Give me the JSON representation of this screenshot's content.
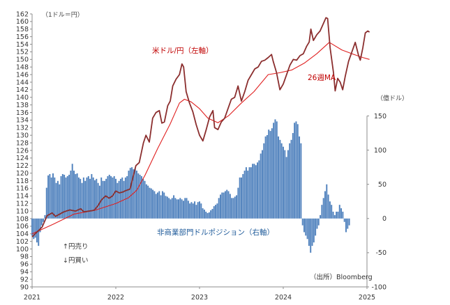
{
  "chart_data": {
    "type": "bar+line",
    "title": "",
    "units": {
      "left": "（1ドル＝円）",
      "right": "（億ドル）"
    },
    "x_axis": {
      "ticks": [
        "2021",
        "2022",
        "2023",
        "2024",
        "2025"
      ],
      "range": [
        "2021-01",
        "2025-01"
      ]
    },
    "y_left": {
      "ylim": [
        90,
        162
      ],
      "ticks": [
        90,
        92,
        94,
        96,
        98,
        100,
        102,
        104,
        106,
        108,
        110,
        112,
        114,
        116,
        118,
        120,
        122,
        124,
        126,
        128,
        130,
        132,
        134,
        136,
        138,
        140,
        142,
        144,
        146,
        148,
        150,
        152,
        154,
        156,
        158,
        160,
        162
      ]
    },
    "y_right": {
      "ylim": [
        -100,
        150
      ],
      "ticks": [
        -100,
        -50,
        0,
        50,
        100,
        150
      ]
    },
    "annotations": {
      "usdjpy": "米ドル/円（左軸）",
      "ma26": "26週MA",
      "position": "非商業部門ドルポジション（右軸）",
      "yen_strong": "↑円売り",
      "yen_weak": "↓円買い",
      "source": "（出所）Bloomberg"
    },
    "colors": {
      "usdjpy": "#8b2e2e",
      "ma26": "#e02020",
      "position": "#4f81bd",
      "usdjpy_label": "#c00000",
      "position_label": "#1f5b9a"
    },
    "series": [
      {
        "key": "usdjpy",
        "axis": "left",
        "kind": "line",
        "points": [
          [
            2021.0,
            103.2
          ],
          [
            2021.06,
            104.5
          ],
          [
            2021.12,
            105.8
          ],
          [
            2021.18,
            108.8
          ],
          [
            2021.24,
            109.5
          ],
          [
            2021.28,
            108.6
          ],
          [
            2021.33,
            109.2
          ],
          [
            2021.38,
            109.8
          ],
          [
            2021.45,
            110.3
          ],
          [
            2021.52,
            110.0
          ],
          [
            2021.58,
            110.6
          ],
          [
            2021.62,
            109.8
          ],
          [
            2021.68,
            110.0
          ],
          [
            2021.74,
            110.2
          ],
          [
            2021.79,
            111.5
          ],
          [
            2021.83,
            113.0
          ],
          [
            2021.88,
            114.0
          ],
          [
            2021.92,
            113.4
          ],
          [
            2021.96,
            114.0
          ],
          [
            2022.0,
            115.3
          ],
          [
            2022.04,
            114.8
          ],
          [
            2022.08,
            115.0
          ],
          [
            2022.12,
            115.4
          ],
          [
            2022.17,
            115.8
          ],
          [
            2022.2,
            118.5
          ],
          [
            2022.24,
            122.0
          ],
          [
            2022.28,
            122.8
          ],
          [
            2022.33,
            128.0
          ],
          [
            2022.36,
            130.0
          ],
          [
            2022.4,
            128.2
          ],
          [
            2022.44,
            134.5
          ],
          [
            2022.48,
            136.0
          ],
          [
            2022.52,
            136.5
          ],
          [
            2022.55,
            133.2
          ],
          [
            2022.58,
            133.5
          ],
          [
            2022.62,
            137.8
          ],
          [
            2022.65,
            139.0
          ],
          [
            2022.68,
            143.0
          ],
          [
            2022.72,
            144.8
          ],
          [
            2022.76,
            146.0
          ],
          [
            2022.79,
            148.8
          ],
          [
            2022.81,
            148.0
          ],
          [
            2022.84,
            141.5
          ],
          [
            2022.88,
            138.5
          ],
          [
            2022.92,
            136.2
          ],
          [
            2022.96,
            132.8
          ],
          [
            2023.0,
            130.0
          ],
          [
            2023.04,
            128.5
          ],
          [
            2023.08,
            131.5
          ],
          [
            2023.12,
            134.8
          ],
          [
            2023.16,
            136.5
          ],
          [
            2023.18,
            132.0
          ],
          [
            2023.22,
            131.5
          ],
          [
            2023.26,
            133.5
          ],
          [
            2023.3,
            134.5
          ],
          [
            2023.34,
            137.0
          ],
          [
            2023.38,
            139.5
          ],
          [
            2023.42,
            140.0
          ],
          [
            2023.46,
            143.0
          ],
          [
            2023.5,
            139.0
          ],
          [
            2023.54,
            141.5
          ],
          [
            2023.58,
            144.5
          ],
          [
            2023.62,
            146.0
          ],
          [
            2023.66,
            147.5
          ],
          [
            2023.7,
            148.0
          ],
          [
            2023.74,
            149.5
          ],
          [
            2023.78,
            149.8
          ],
          [
            2023.82,
            150.5
          ],
          [
            2023.86,
            151.3
          ],
          [
            2023.88,
            149.5
          ],
          [
            2023.92,
            146.5
          ],
          [
            2023.96,
            142.0
          ],
          [
            2024.0,
            143.5
          ],
          [
            2024.04,
            146.0
          ],
          [
            2024.08,
            148.5
          ],
          [
            2024.12,
            150.0
          ],
          [
            2024.16,
            149.8
          ],
          [
            2024.2,
            151.0
          ],
          [
            2024.24,
            151.5
          ],
          [
            2024.28,
            153.5
          ],
          [
            2024.31,
            154.6
          ],
          [
            2024.33,
            158.0
          ],
          [
            2024.36,
            155.0
          ],
          [
            2024.4,
            156.5
          ],
          [
            2024.44,
            157.5
          ],
          [
            2024.48,
            159.5
          ],
          [
            2024.51,
            161.0
          ],
          [
            2024.53,
            160.8
          ],
          [
            2024.56,
            153.0
          ],
          [
            2024.6,
            146.5
          ],
          [
            2024.62,
            141.7
          ],
          [
            2024.65,
            145.0
          ],
          [
            2024.68,
            144.0
          ],
          [
            2024.71,
            142.0
          ],
          [
            2024.74,
            145.5
          ],
          [
            2024.78,
            149.5
          ],
          [
            2024.82,
            152.0
          ],
          [
            2024.86,
            154.5
          ],
          [
            2024.9,
            151.0
          ],
          [
            2024.92,
            149.8
          ],
          [
            2024.95,
            153.0
          ],
          [
            2024.98,
            157.0
          ],
          [
            2025.01,
            157.5
          ],
          [
            2025.03,
            157.2
          ]
        ]
      },
      {
        "key": "ma26",
        "axis": "left",
        "kind": "line",
        "points": [
          [
            2021.0,
            104.0
          ],
          [
            2021.25,
            106.5
          ],
          [
            2021.5,
            109.2
          ],
          [
            2021.75,
            110.2
          ],
          [
            2022.0,
            112.0
          ],
          [
            2022.15,
            113.5
          ],
          [
            2022.25,
            115.5
          ],
          [
            2022.35,
            119.5
          ],
          [
            2022.5,
            126.5
          ],
          [
            2022.65,
            133.0
          ],
          [
            2022.76,
            138.5
          ],
          [
            2022.82,
            139.5
          ],
          [
            2022.9,
            138.8
          ],
          [
            2023.0,
            137.0
          ],
          [
            2023.1,
            134.5
          ],
          [
            2023.22,
            133.3
          ],
          [
            2023.35,
            135.2
          ],
          [
            2023.5,
            138.5
          ],
          [
            2023.65,
            141.5
          ],
          [
            2023.82,
            146.0
          ],
          [
            2023.96,
            146.5
          ],
          [
            2024.1,
            147.2
          ],
          [
            2024.25,
            149.0
          ],
          [
            2024.4,
            151.5
          ],
          [
            2024.55,
            154.5
          ],
          [
            2024.7,
            152.5
          ],
          [
            2024.82,
            151.5
          ],
          [
            2024.95,
            150.5
          ],
          [
            2025.03,
            150.0
          ]
        ]
      },
      {
        "key": "position",
        "axis": "right",
        "kind": "bar",
        "start": 2021.0,
        "step": 0.01923,
        "values": [
          -25,
          -30,
          -28,
          -35,
          -40,
          -20,
          -10,
          -5,
          5,
          45,
          63,
          65,
          60,
          66,
          60,
          52,
          55,
          50,
          62,
          65,
          64,
          60,
          62,
          64,
          70,
          80,
          70,
          65,
          66,
          60,
          58,
          52,
          60,
          55,
          60,
          62,
          58,
          65,
          60,
          56,
          58,
          52,
          48,
          60,
          55,
          55,
          58,
          62,
          64,
          62,
          60,
          62,
          58,
          52,
          55,
          58,
          60,
          55,
          60,
          62,
          70,
          74,
          75,
          72,
          73,
          70,
          66,
          64,
          62,
          58,
          55,
          50,
          48,
          45,
          44,
          42,
          40,
          36,
          38,
          40,
          34,
          40,
          38,
          33,
          32,
          30,
          28,
          30,
          34,
          30,
          28,
          28,
          30,
          28,
          26,
          30,
          30,
          26,
          22,
          24,
          22,
          25,
          20,
          24,
          25,
          22,
          15,
          13,
          10,
          8,
          9,
          12,
          14,
          18,
          20,
          22,
          30,
          35,
          38,
          38,
          40,
          42,
          40,
          36,
          30,
          30,
          32,
          34,
          45,
          60,
          60,
          65,
          70,
          75,
          70,
          75,
          75,
          80,
          80,
          78,
          82,
          85,
          95,
          100,
          110,
          120,
          122,
          130,
          128,
          132,
          140,
          145,
          142,
          120,
          115,
          110,
          105,
          100,
          90,
          100,
          110,
          115,
          125,
          140,
          142,
          138,
          120,
          110,
          -10,
          -20,
          -25,
          -30,
          -40,
          -50,
          -40,
          -35,
          -25,
          -15,
          -10,
          5,
          20,
          30,
          40,
          50,
          35,
          25,
          20,
          10,
          5,
          10,
          10,
          20,
          15,
          10,
          -5,
          -20,
          -15,
          -10
        ]
      }
    ]
  }
}
